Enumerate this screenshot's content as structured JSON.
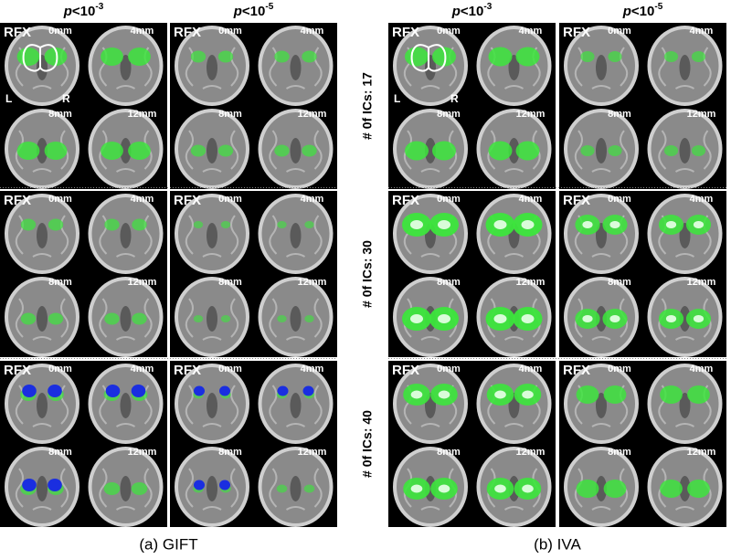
{
  "groups": [
    {
      "caption": "(a) GIFT",
      "thresholds": [
        {
          "p": "p",
          "rest": "<10",
          "exp": "-3"
        },
        {
          "p": "p",
          "rest": "<10",
          "exp": "-5"
        }
      ]
    },
    {
      "caption": "(b) IVA",
      "thresholds": [
        {
          "p": "p",
          "rest": "<10",
          "exp": "-3"
        },
        {
          "p": "p",
          "rest": "<10",
          "exp": "-5"
        }
      ]
    }
  ],
  "rows": [
    {
      "label": "# 0f ICs: 17"
    },
    {
      "label": "# 0f ICs: 30"
    },
    {
      "label": "# 0f ICs: 40"
    }
  ],
  "panel_label": "RFX",
  "slices": [
    "0mm",
    "4mm",
    "8mm",
    "12mm"
  ],
  "hemispheres": [
    "L",
    "R"
  ]
}
